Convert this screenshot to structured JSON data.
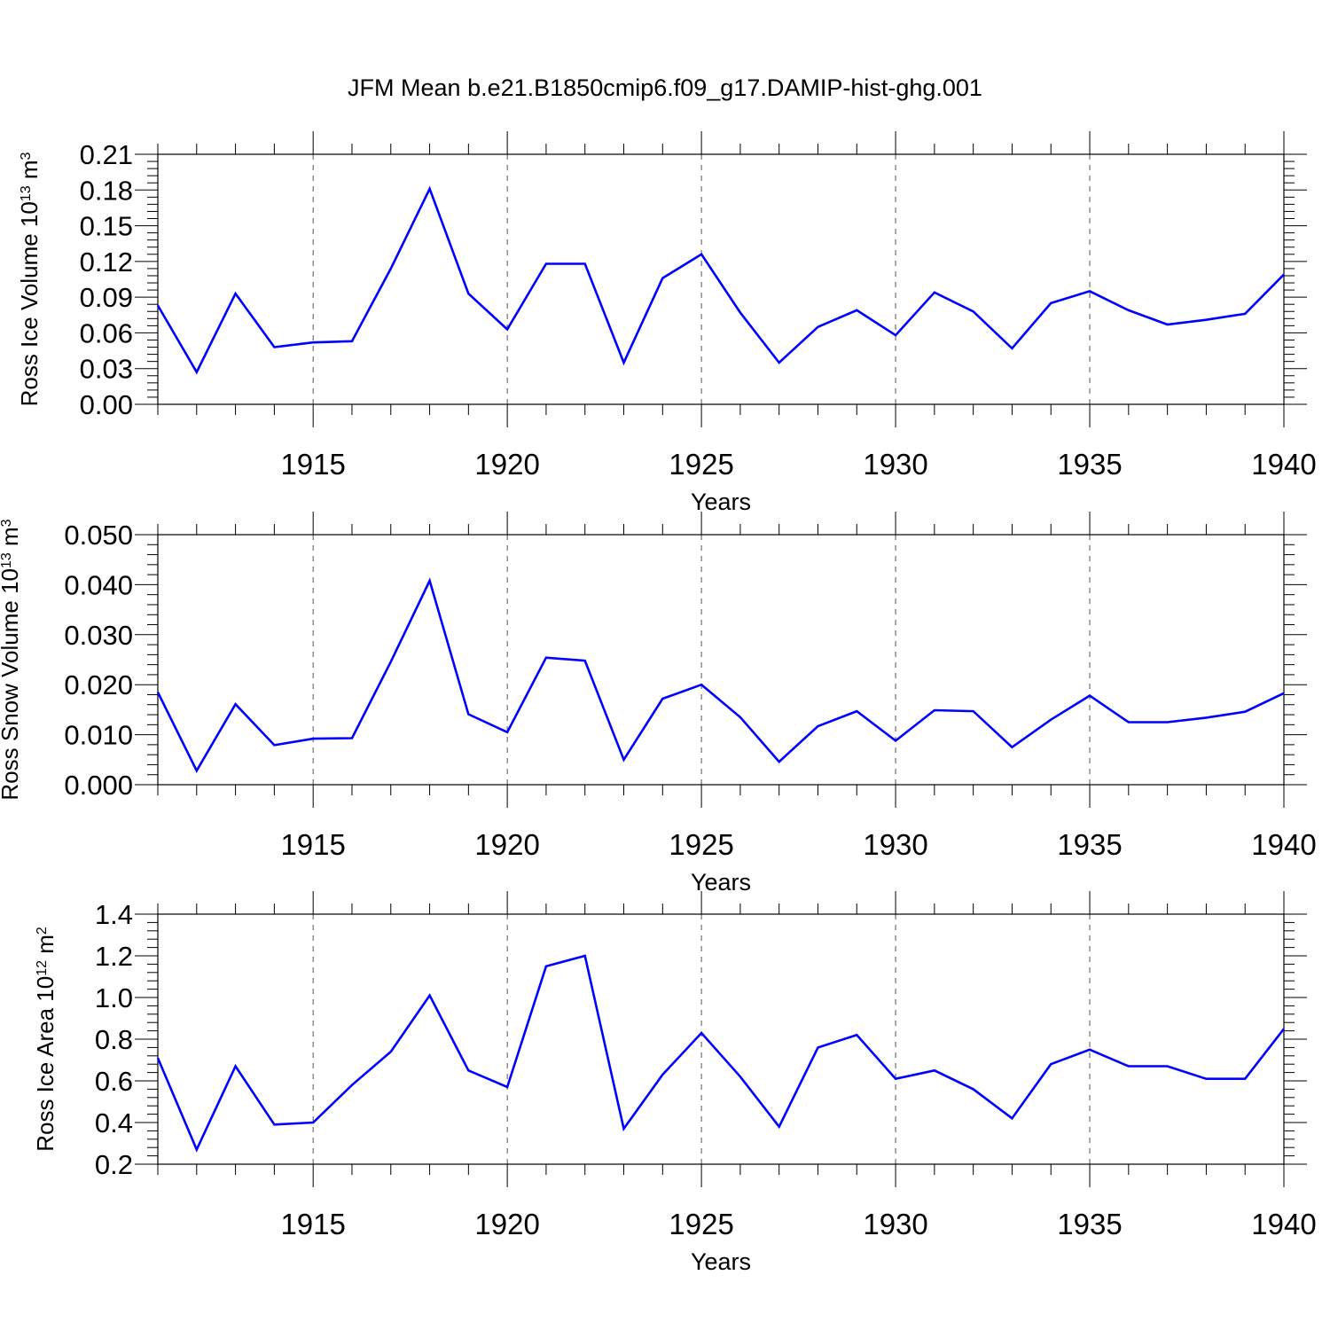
{
  "title": "JFM Mean b.e21.B1850cmip6.f09_g17.DAMIP-hist-ghg.001",
  "colors": {
    "line": "#0000ff",
    "axis": "#000000",
    "grid": "#555555"
  },
  "chart_data": [
    {
      "type": "line",
      "title": "JFM Mean b.e21.B1850cmip6.f09_g17.DAMIP-hist-ghg.001",
      "ylabel_base": "Ross Ice Volume 10",
      "ylabel_exp": "13",
      "ylabel_unit": " m",
      "ylabel_unit_exp": "3",
      "xlabel": "Years",
      "xlim": [
        1911,
        1940
      ],
      "ylim": [
        0.0,
        0.21
      ],
      "yticks": [
        0.0,
        0.03,
        0.06,
        0.09,
        0.12,
        0.15,
        0.18,
        0.21
      ],
      "ytick_labels": [
        "0.00",
        "0.03",
        "0.06",
        "0.09",
        "0.12",
        "0.15",
        "0.18",
        "0.21"
      ],
      "xticks": [
        1915,
        1920,
        1925,
        1930,
        1935,
        1940
      ],
      "xtick_labels": [
        "1915",
        "1920",
        "1925",
        "1930",
        "1935",
        "1940"
      ],
      "grid": "vertical dashed at major x ticks",
      "x": [
        1911,
        1912,
        1913,
        1914,
        1915,
        1916,
        1917,
        1918,
        1919,
        1920,
        1921,
        1922,
        1923,
        1924,
        1925,
        1926,
        1927,
        1928,
        1929,
        1930,
        1931,
        1932,
        1933,
        1934,
        1935,
        1936,
        1937,
        1938,
        1939,
        1940
      ],
      "series": [
        {
          "name": "Ross Ice Volume",
          "values": [
            0.083,
            0.027,
            0.093,
            0.048,
            0.052,
            0.053,
            0.114,
            0.181,
            0.093,
            0.063,
            0.118,
            0.118,
            0.035,
            0.106,
            0.126,
            0.077,
            0.035,
            0.065,
            0.079,
            0.058,
            0.094,
            0.078,
            0.047,
            0.085,
            0.095,
            0.079,
            0.067,
            0.071,
            0.076,
            0.109
          ]
        }
      ]
    },
    {
      "type": "line",
      "ylabel_base": "Ross Snow Volume 10",
      "ylabel_exp": "13",
      "ylabel_unit": " m",
      "ylabel_unit_exp": "3",
      "xlabel": "Years",
      "xlim": [
        1911,
        1940
      ],
      "ylim": [
        0.0,
        0.05
      ],
      "yticks": [
        0.0,
        0.01,
        0.02,
        0.03,
        0.04,
        0.05
      ],
      "ytick_labels": [
        "0.000",
        "0.010",
        "0.020",
        "0.030",
        "0.040",
        "0.050"
      ],
      "xticks": [
        1915,
        1920,
        1925,
        1930,
        1935,
        1940
      ],
      "xtick_labels": [
        "1915",
        "1920",
        "1925",
        "1930",
        "1935",
        "1940"
      ],
      "grid": "vertical dashed at major x ticks",
      "x": [
        1911,
        1912,
        1913,
        1914,
        1915,
        1916,
        1917,
        1918,
        1919,
        1920,
        1921,
        1922,
        1923,
        1924,
        1925,
        1926,
        1927,
        1928,
        1929,
        1930,
        1931,
        1932,
        1933,
        1934,
        1935,
        1936,
        1937,
        1938,
        1939,
        1940
      ],
      "series": [
        {
          "name": "Ross Snow Volume",
          "values": [
            0.0185,
            0.0028,
            0.0161,
            0.0079,
            0.0092,
            0.0093,
            0.0246,
            0.0408,
            0.0141,
            0.0105,
            0.0254,
            0.0248,
            0.005,
            0.0172,
            0.02,
            0.0135,
            0.0046,
            0.0117,
            0.0147,
            0.0088,
            0.0149,
            0.0147,
            0.0075,
            0.013,
            0.0178,
            0.0125,
            0.0125,
            0.0134,
            0.0146,
            0.0183
          ]
        }
      ]
    },
    {
      "type": "line",
      "ylabel_base": "Ross Ice Area 10",
      "ylabel_exp": "12",
      "ylabel_unit": " m",
      "ylabel_unit_exp": "2",
      "xlabel": "Years",
      "xlim": [
        1911,
        1940
      ],
      "ylim": [
        0.2,
        1.4
      ],
      "yticks": [
        0.2,
        0.4,
        0.6,
        0.8,
        1.0,
        1.2,
        1.4
      ],
      "ytick_labels": [
        "0.2",
        "0.4",
        "0.6",
        "0.8",
        "1.0",
        "1.2",
        "1.4"
      ],
      "xticks": [
        1915,
        1920,
        1925,
        1930,
        1935,
        1940
      ],
      "xtick_labels": [
        "1915",
        "1920",
        "1925",
        "1930",
        "1935",
        "1940"
      ],
      "grid": "vertical dashed at major x ticks",
      "x": [
        1911,
        1912,
        1913,
        1914,
        1915,
        1916,
        1917,
        1918,
        1919,
        1920,
        1921,
        1922,
        1923,
        1924,
        1925,
        1926,
        1927,
        1928,
        1929,
        1930,
        1931,
        1932,
        1933,
        1934,
        1935,
        1936,
        1937,
        1938,
        1939,
        1940
      ],
      "series": [
        {
          "name": "Ross Ice Area",
          "values": [
            0.71,
            0.27,
            0.67,
            0.39,
            0.4,
            0.58,
            0.74,
            1.01,
            0.65,
            0.57,
            1.15,
            1.2,
            0.37,
            0.63,
            0.83,
            0.62,
            0.38,
            0.76,
            0.82,
            0.61,
            0.65,
            0.56,
            0.42,
            0.68,
            0.75,
            0.67,
            0.67,
            0.61,
            0.61,
            0.85
          ]
        }
      ]
    }
  ]
}
